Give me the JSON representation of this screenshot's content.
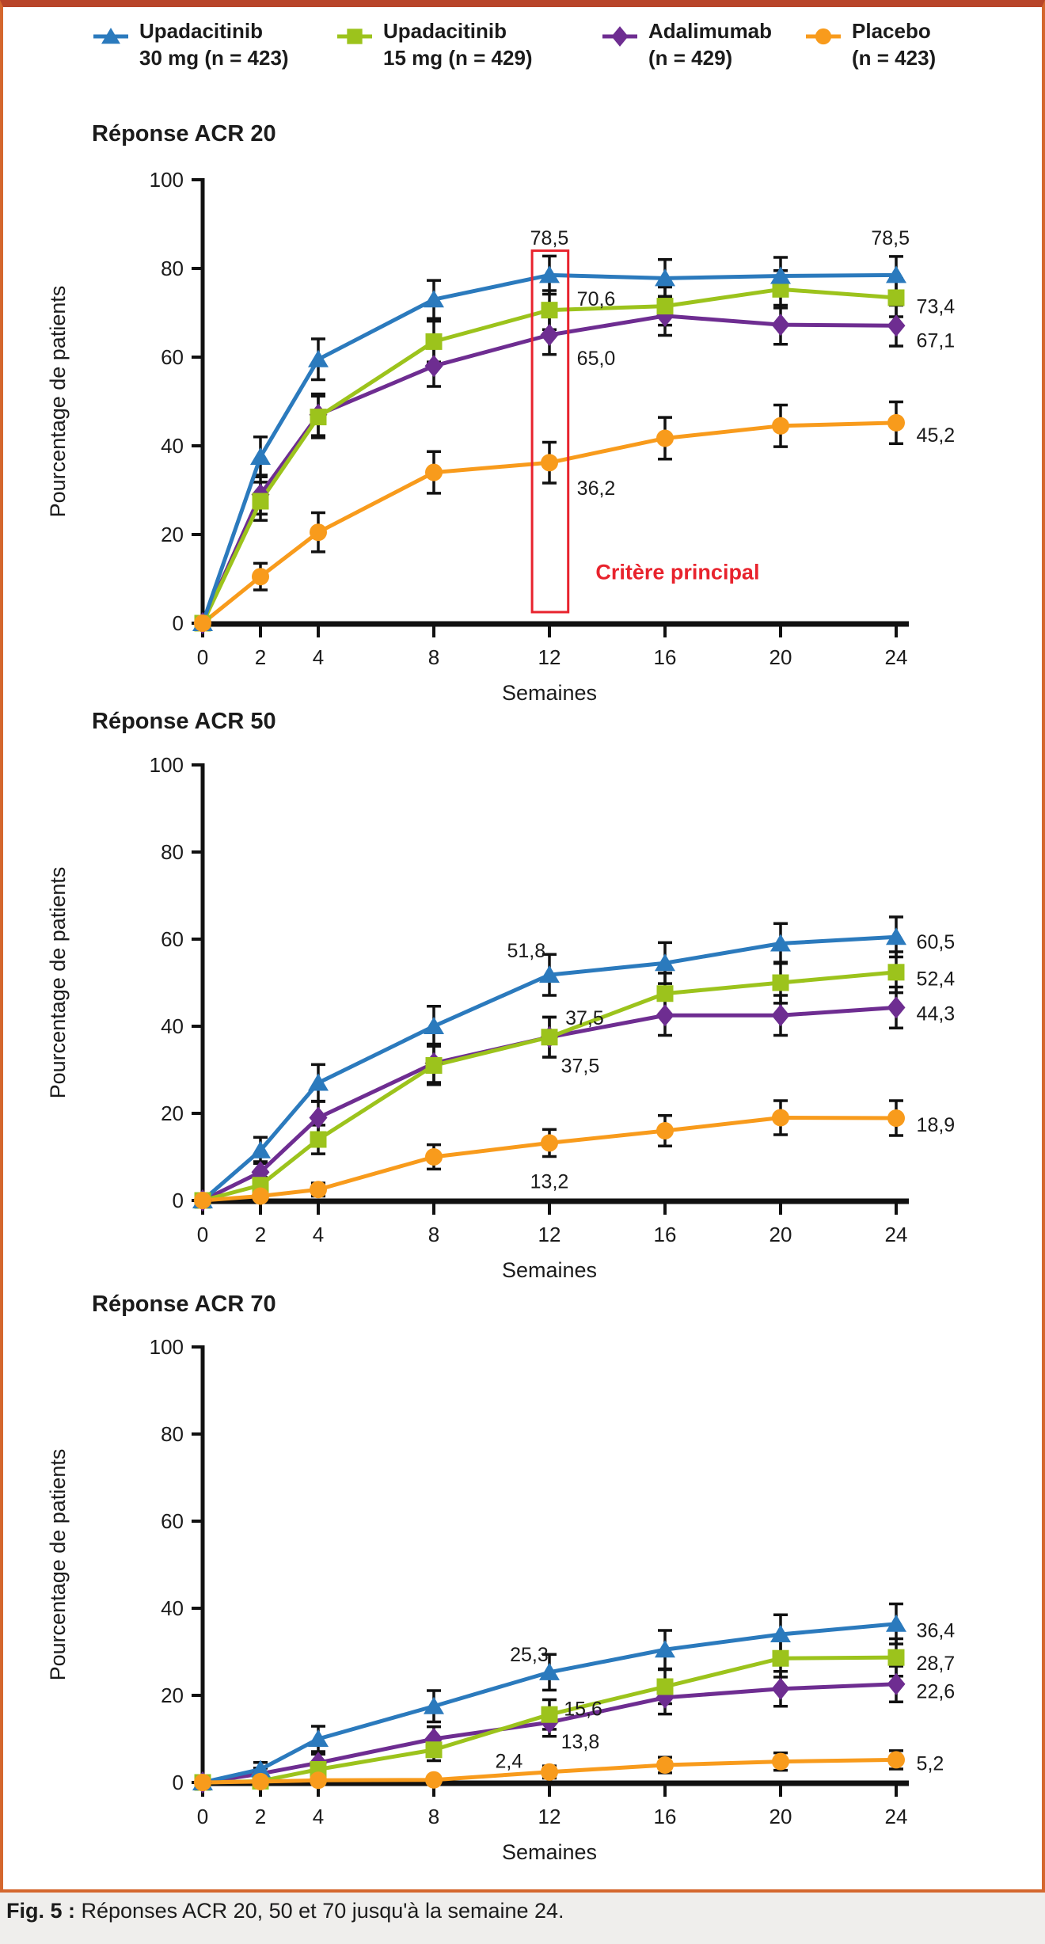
{
  "legend": {
    "items": [
      {
        "id": "upa30",
        "line1": "Upadacitinib",
        "line2": "30 mg (n = 423)",
        "marker": "triangle",
        "color": "#2b7abd"
      },
      {
        "id": "upa15",
        "line1": "Upadacitinib",
        "line2": "15 mg (n = 429)",
        "marker": "square",
        "color": "#9cc31c"
      },
      {
        "id": "ada",
        "line1": "Adalimumab",
        "line2": "(n = 429)",
        "marker": "diamond",
        "color": "#6e2d91"
      },
      {
        "id": "pbo",
        "line1": "Placebo",
        "line2": "(n = 423)",
        "marker": "circle",
        "color": "#f89b1c"
      }
    ]
  },
  "colors": {
    "upa30": "#2b7abd",
    "upa15": "#9cc31c",
    "ada": "#6e2d91",
    "pbo": "#f89b1c",
    "error_bar": "#111111",
    "axis": "#111111",
    "text": "#1b1b1b",
    "highlight_red": "#e8232d",
    "border_orange": "#d4672e",
    "border_top": "#b8452a"
  },
  "chart_data": [
    {
      "type": "line",
      "title": "Réponse ACR 20",
      "xlabel": "Semaines",
      "ylabel": "Pourcentage de patients",
      "x": [
        0,
        2,
        4,
        8,
        12,
        16,
        20,
        24
      ],
      "xtick_labels": [
        "0",
        "2",
        "4",
        "8",
        "12",
        "16",
        "20",
        "24"
      ],
      "yticks": [
        0,
        20,
        40,
        60,
        80,
        100
      ],
      "ylim": [
        0,
        100
      ],
      "grid": false,
      "series": [
        {
          "name": "Upadacitinib 30 mg (n = 423)",
          "key": "upa30",
          "marker": "triangle",
          "color": "#2b7abd",
          "values": [
            0,
            37.5,
            59.5,
            73,
            78.5,
            77.8,
            78.3,
            78.5
          ],
          "errors": [
            0,
            4.5,
            4.6,
            4.3,
            4.3,
            4.2,
            4.2,
            4.2
          ]
        },
        {
          "name": "Upadacitinib 15 mg (n = 429)",
          "key": "upa15",
          "marker": "square",
          "color": "#9cc31c",
          "values": [
            0,
            27.5,
            46.5,
            63.5,
            70.6,
            71.5,
            75.3,
            73.4
          ],
          "errors": [
            0,
            4.3,
            4.7,
            4.6,
            4.4,
            4.3,
            4.2,
            4.3
          ]
        },
        {
          "name": "Adalimumab (n = 429)",
          "key": "ada",
          "marker": "diamond",
          "color": "#6e2d91",
          "values": [
            0,
            29,
            47,
            58,
            65,
            69.3,
            67.3,
            67.1
          ],
          "errors": [
            0,
            4.4,
            4.7,
            4.6,
            4.4,
            4.4,
            4.4,
            4.6
          ]
        },
        {
          "name": "Placebo (n = 423)",
          "key": "pbo",
          "marker": "circle",
          "color": "#f89b1c",
          "values": [
            0,
            10.5,
            20.5,
            34,
            36.2,
            41.7,
            44.5,
            45.2
          ],
          "errors": [
            0,
            3,
            4.4,
            4.7,
            4.6,
            4.7,
            4.7,
            4.7
          ]
        }
      ],
      "annotations": [
        {
          "text": "78,5",
          "week": 12,
          "pct": 87,
          "anchor": "middle"
        },
        {
          "text": "70,6",
          "week": 12.95,
          "pct": 73.2,
          "anchor": "start"
        },
        {
          "text": "65,0",
          "week": 12.95,
          "pct": 59.8,
          "anchor": "start"
        },
        {
          "text": "36,2",
          "week": 12.95,
          "pct": 30.5,
          "anchor": "start"
        },
        {
          "text": "78,5",
          "week": 23.8,
          "pct": 87,
          "anchor": "middle"
        },
        {
          "text": "73,4",
          "week": 24.7,
          "pct": 71.5,
          "anchor": "start"
        },
        {
          "text": "67,1",
          "week": 24.7,
          "pct": 63.8,
          "anchor": "start"
        },
        {
          "text": "45,2",
          "week": 24.7,
          "pct": 42.5,
          "anchor": "start"
        }
      ],
      "highlight": {
        "label": "Critère principal",
        "rect": {
          "week_from": 11.4,
          "week_to": 12.65,
          "pct_from": 2.5,
          "pct_to": 84
        },
        "label_week": 13.6,
        "label_pct": 11.5
      }
    },
    {
      "type": "line",
      "title": "Réponse ACR 50",
      "xlabel": "Semaines",
      "ylabel": "Pourcentage de patients",
      "x": [
        0,
        2,
        4,
        8,
        12,
        16,
        20,
        24
      ],
      "xtick_labels": [
        "0",
        "2",
        "4",
        "8",
        "12",
        "16",
        "20",
        "24"
      ],
      "yticks": [
        0,
        20,
        40,
        60,
        80,
        100
      ],
      "ylim": [
        0,
        100
      ],
      "grid": false,
      "series": [
        {
          "name": "Upadacitinib 30 mg (n = 423)",
          "key": "upa30",
          "marker": "triangle",
          "color": "#2b7abd",
          "values": [
            0,
            11.5,
            27,
            40,
            51.8,
            54.5,
            59,
            60.5
          ],
          "errors": [
            0,
            3,
            4.2,
            4.6,
            4.7,
            4.7,
            4.6,
            4.6
          ]
        },
        {
          "name": "Upadacitinib 15 mg (n = 429)",
          "key": "upa15",
          "marker": "square",
          "color": "#9cc31c",
          "values": [
            0,
            3.5,
            14,
            31,
            37.5,
            47.5,
            50,
            52.4
          ],
          "errors": [
            0,
            1.8,
            3.3,
            4.4,
            4.6,
            4.7,
            4.7,
            4.7
          ]
        },
        {
          "name": "Adalimumab (n = 429)",
          "key": "ada",
          "marker": "diamond",
          "color": "#6e2d91",
          "values": [
            0,
            6.5,
            19,
            31.5,
            37.5,
            42.5,
            42.5,
            44.3
          ],
          "errors": [
            0,
            2.4,
            3.7,
            4.4,
            4.6,
            4.6,
            4.6,
            4.7
          ]
        },
        {
          "name": "Placebo (n = 423)",
          "key": "pbo",
          "marker": "circle",
          "color": "#f89b1c",
          "values": [
            0,
            1,
            2.5,
            10,
            13.2,
            16,
            19,
            18.9
          ],
          "errors": [
            0,
            0.9,
            1.5,
            2.8,
            3.1,
            3.5,
            3.9,
            4
          ]
        }
      ],
      "annotations": [
        {
          "text": "51,8",
          "week": 11.2,
          "pct": 57.5,
          "anchor": "middle"
        },
        {
          "text": "37,5",
          "week": 12.55,
          "pct": 42,
          "anchor": "start"
        },
        {
          "text": "37,5",
          "week": 12.4,
          "pct": 31,
          "anchor": "start"
        },
        {
          "text": "13,2",
          "week": 12,
          "pct": 4.5,
          "anchor": "middle"
        },
        {
          "text": "60,5",
          "week": 24.7,
          "pct": 59.5,
          "anchor": "start"
        },
        {
          "text": "52,4",
          "week": 24.7,
          "pct": 51,
          "anchor": "start"
        },
        {
          "text": "44,3",
          "week": 24.7,
          "pct": 43,
          "anchor": "start"
        },
        {
          "text": "18,9",
          "week": 24.7,
          "pct": 17.5,
          "anchor": "start"
        }
      ],
      "highlight": null
    },
    {
      "type": "line",
      "title": "Réponse ACR 70",
      "xlabel": "Semaines",
      "ylabel": "Pourcentage de patients",
      "x": [
        0,
        2,
        4,
        8,
        12,
        16,
        20,
        24
      ],
      "xtick_labels": [
        "0",
        "2",
        "4",
        "8",
        "12",
        "16",
        "20",
        "24"
      ],
      "yticks": [
        0,
        20,
        40,
        60,
        80,
        100
      ],
      "ylim": [
        0,
        100
      ],
      "grid": false,
      "series": [
        {
          "name": "Upadacitinib 30 mg (n = 423)",
          "key": "upa30",
          "marker": "triangle",
          "color": "#2b7abd",
          "values": [
            0,
            3,
            10,
            17.5,
            25.3,
            30.5,
            34,
            36.4
          ],
          "errors": [
            0,
            1.6,
            2.9,
            3.6,
            4.1,
            4.4,
            4.5,
            4.6
          ]
        },
        {
          "name": "Upadacitinib 15 mg (n = 429)",
          "key": "upa15",
          "marker": "square",
          "color": "#9cc31c",
          "values": [
            0,
            0.3,
            3,
            7.5,
            15.6,
            22,
            28.5,
            28.7
          ],
          "errors": [
            0,
            0.6,
            1.6,
            2.5,
            3.4,
            3.9,
            4.3,
            4.3
          ]
        },
        {
          "name": "Adalimumab (n = 429)",
          "key": "ada",
          "marker": "diamond",
          "color": "#6e2d91",
          "values": [
            0,
            2,
            4.5,
            10,
            13.8,
            19.5,
            21.5,
            22.6
          ],
          "errors": [
            0,
            1.3,
            2,
            2.8,
            3.2,
            3.8,
            4,
            4.1
          ]
        },
        {
          "name": "Placebo (n = 423)",
          "key": "pbo",
          "marker": "circle",
          "color": "#f89b1c",
          "values": [
            0,
            0.2,
            0.5,
            0.6,
            2.4,
            4,
            4.8,
            5.2
          ],
          "errors": [
            0,
            0.4,
            0.6,
            0.8,
            1.4,
            1.8,
            2,
            2.1
          ]
        }
      ],
      "annotations": [
        {
          "text": "25,3",
          "week": 11.3,
          "pct": 29.5,
          "anchor": "middle"
        },
        {
          "text": "15,6",
          "week": 12.5,
          "pct": 17,
          "anchor": "start"
        },
        {
          "text": "13,8",
          "week": 12.4,
          "pct": 9.5,
          "anchor": "start"
        },
        {
          "text": "2,4",
          "week": 10.6,
          "pct": 5,
          "anchor": "middle"
        },
        {
          "text": "36,4",
          "week": 24.7,
          "pct": 35,
          "anchor": "start"
        },
        {
          "text": "28,7",
          "week": 24.7,
          "pct": 27.5,
          "anchor": "start"
        },
        {
          "text": "22,6",
          "week": 24.7,
          "pct": 21,
          "anchor": "start"
        },
        {
          "text": "5,2",
          "week": 24.7,
          "pct": 4.5,
          "anchor": "start"
        }
      ],
      "highlight": null
    }
  ],
  "caption": {
    "prefix": "Fig. 5 :",
    "text": " Réponses ACR 20, 50 et 70 jusqu'à la semaine 24."
  }
}
